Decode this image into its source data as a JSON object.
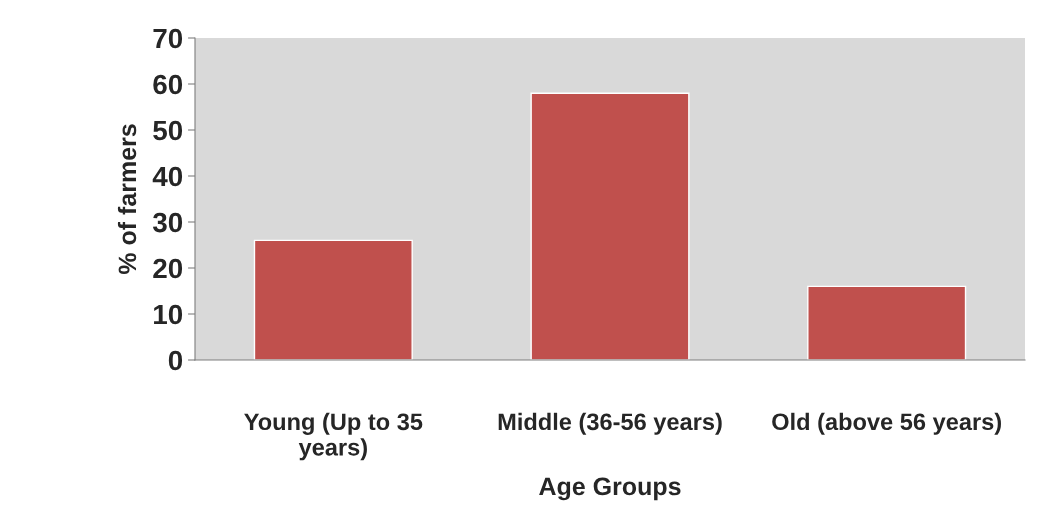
{
  "chart_data": {
    "type": "bar",
    "xlabel": "Age Groups",
    "ylabel": "% of farmers",
    "categories": [
      "Young (Up to 35\nyears)",
      "Middle (36-56 years)",
      "Old (above 56 years)"
    ],
    "values": [
      26,
      58,
      16
    ],
    "color": "#c0504d",
    "ylim": [
      0,
      70
    ],
    "yticks": [
      0,
      10,
      20,
      30,
      40,
      50,
      60,
      70
    ],
    "grid": false,
    "legend": false
  }
}
